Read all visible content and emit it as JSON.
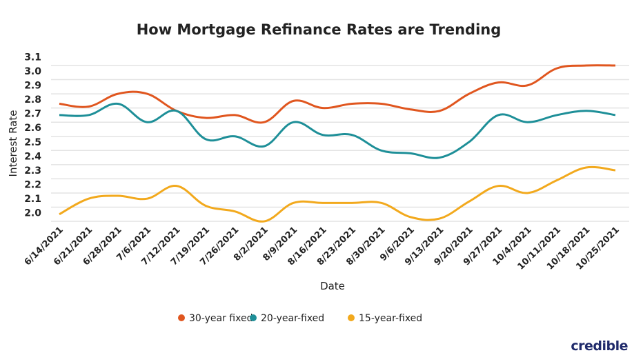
{
  "chart_data": {
    "type": "line",
    "title": "How Mortgage Refinance Rates are Trending",
    "xlabel": "Date",
    "ylabel": "Interest Rate",
    "ylim": [
      1.9,
      3.1
    ],
    "yticks": [
      "2.0",
      "2.1",
      "2.2",
      "2.3",
      "2.4",
      "2.5",
      "2.6",
      "2.7",
      "2.8",
      "2.9",
      "3.0",
      "3.1"
    ],
    "grid": true,
    "legend_position": "bottom",
    "categories": [
      "6/14/2021",
      "6/21/2021",
      "6/28/2021",
      "7/6/2021",
      "7/12/2021",
      "7/19/2021",
      "7/26/2021",
      "8/2/2021",
      "8/9/2021",
      "8/16/2021",
      "8/23/2021",
      "8/30/2021",
      "9/6/2021",
      "9/13/2021",
      "9/20/2021",
      "9/27/2021",
      "10/4/2021",
      "10/11/2021",
      "10/18/2021",
      "10/25/2021"
    ],
    "series": [
      {
        "name": "30-year fixed",
        "color": "#e0561f",
        "values": [
          2.73,
          2.71,
          2.8,
          2.8,
          2.68,
          2.63,
          2.65,
          2.6,
          2.75,
          2.7,
          2.73,
          2.73,
          2.69,
          2.68,
          2.8,
          2.88,
          2.86,
          2.98,
          3.0,
          3.0
        ]
      },
      {
        "name": "20-year-fixed",
        "color": "#1e8f98",
        "values": [
          2.65,
          2.65,
          2.73,
          2.6,
          2.68,
          2.48,
          2.5,
          2.43,
          2.6,
          2.51,
          2.51,
          2.4,
          2.38,
          2.35,
          2.46,
          2.65,
          2.6,
          2.65,
          2.68,
          2.65
        ]
      },
      {
        "name": "15-year-fixed",
        "color": "#f2a91d",
        "values": [
          1.95,
          2.06,
          2.08,
          2.06,
          2.15,
          2.01,
          1.97,
          1.9,
          2.03,
          2.03,
          2.03,
          2.03,
          1.93,
          1.92,
          2.04,
          2.15,
          2.1,
          2.19,
          2.28,
          2.26
        ]
      }
    ]
  },
  "logo": "credible"
}
